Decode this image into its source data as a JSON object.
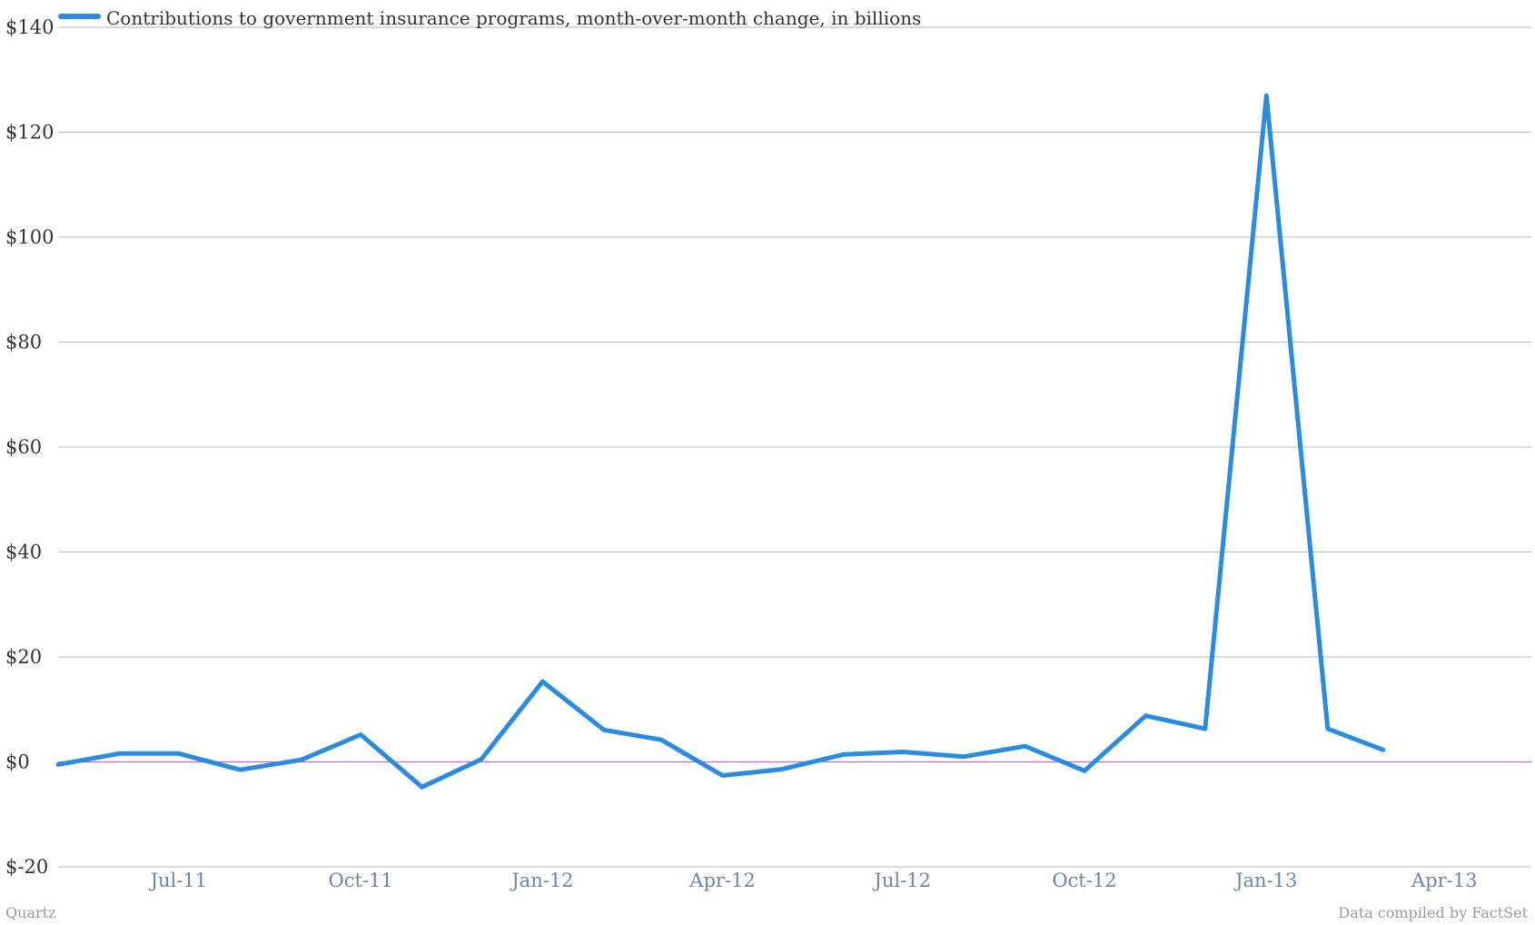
{
  "chart_data": {
    "type": "line",
    "legend": {
      "label": "Contributions to government insurance programs, month-over-month change, in billions",
      "position": "top-left"
    },
    "y_ticks": [
      "$-20",
      "$0",
      "$20",
      "$40",
      "$60",
      "$80",
      "$100",
      "$120",
      "$140"
    ],
    "x_ticks": [
      "Jul-11",
      "Oct-11",
      "Jan-12",
      "Apr-12",
      "Jul-12",
      "Oct-12",
      "Jan-13",
      "Apr-13"
    ],
    "x_tick_dates": [
      "2011-07",
      "2011-10",
      "2012-01",
      "2012-04",
      "2012-07",
      "2012-10",
      "2013-01",
      "2013-04"
    ],
    "ylim": [
      -20,
      140
    ],
    "xlim": [
      "2011-05-01",
      "2013-05-15"
    ],
    "grid": true,
    "zero_line_color": "#cc66cc",
    "series": [
      {
        "name": "Contributions to government insurance programs, month-over-month change, in billions",
        "color": "#2a8be3",
        "x": [
          "2011-05",
          "2011-06",
          "2011-07",
          "2011-08",
          "2011-09",
          "2011-10",
          "2011-11",
          "2011-12",
          "2012-01",
          "2012-02",
          "2012-03",
          "2012-04",
          "2012-05",
          "2012-06",
          "2012-07",
          "2012-08",
          "2012-09",
          "2012-10",
          "2012-11",
          "2012-12",
          "2013-01",
          "2013-02",
          "2013-03"
        ],
        "values": [
          -0.5,
          1.6,
          1.6,
          -1.5,
          0.4,
          5.2,
          -4.8,
          0.5,
          15.3,
          6.1,
          4.2,
          -2.6,
          -1.4,
          1.4,
          1.9,
          1.0,
          3.0,
          -1.7,
          8.8,
          6.3,
          127,
          6.3,
          2.3
        ]
      }
    ]
  },
  "footer": {
    "source_left": "Quartz",
    "source_right": "Data compiled by FactSet"
  },
  "colors": {
    "line": "#2a8be3",
    "grid": "#b8b8b8",
    "zero_line": "#cc66cc",
    "x_tick_text": "#6a86a8",
    "y_tick_text": "#333333",
    "footer_text": "#9a9a9a"
  }
}
